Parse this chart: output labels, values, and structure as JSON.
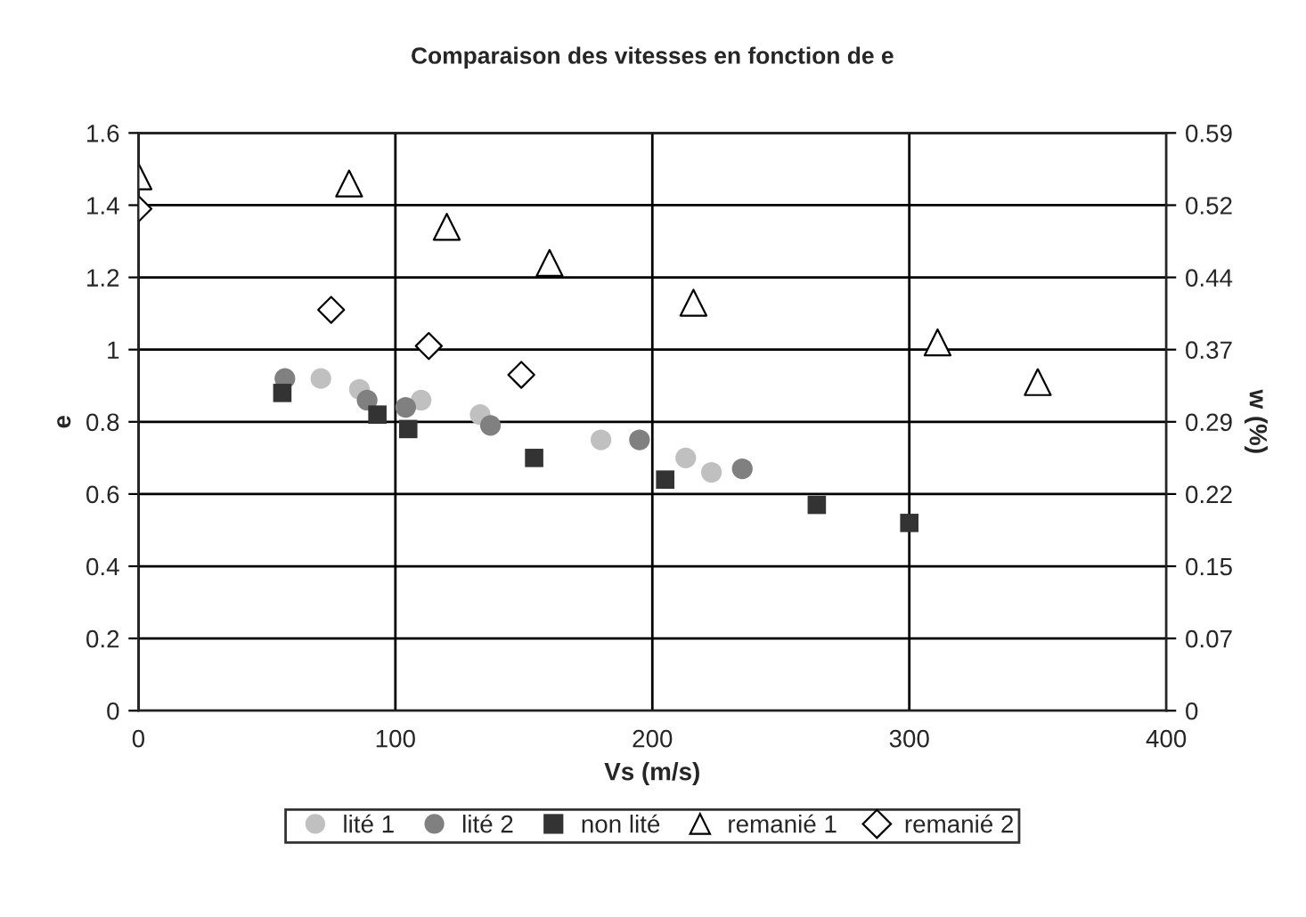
{
  "chart_data": {
    "type": "scatter",
    "title": "Comparaison des vitesses en fonction de e",
    "xlabel": "Vs (m/s)",
    "ylabel": "e",
    "y2label": "w (%)",
    "xlim": [
      0,
      400
    ],
    "xticks": [
      0,
      100,
      200,
      300,
      400
    ],
    "ylim": [
      0,
      1.6
    ],
    "yticks": [
      0,
      0.2,
      0.4,
      0.6,
      0.8,
      1,
      1.2,
      1.4,
      1.6
    ],
    "y2lim": [
      0,
      0.59
    ],
    "y2ticks": [
      0,
      {
        "value": 0.07375,
        "label": "0.07"
      },
      {
        "value": 0.1475,
        "label": "0.15"
      },
      {
        "value": 0.22125,
        "label": "0.22"
      },
      {
        "value": 0.295,
        "label": "0.29"
      },
      {
        "value": 0.36875,
        "label": "0.37"
      },
      {
        "value": 0.4425,
        "label": "0.44"
      },
      {
        "value": 0.51625,
        "label": "0.52"
      },
      0.59
    ],
    "grid": true,
    "legend": "bottom",
    "series": [
      {
        "name": "lité 1",
        "color": "#c0c0c0",
        "marker": "circle",
        "x": [
          71,
          86,
          110,
          133,
          180,
          213,
          223
        ],
        "values": [
          0.92,
          0.89,
          0.86,
          0.82,
          0.75,
          0.7,
          0.66
        ]
      },
      {
        "name": "lité 2",
        "color": "#808080",
        "marker": "circle",
        "x": [
          57,
          89,
          104,
          137,
          195,
          235
        ],
        "values": [
          0.92,
          0.86,
          0.84,
          0.79,
          0.75,
          0.67
        ]
      },
      {
        "name": "non lité",
        "color": "#333333",
        "marker": "square",
        "x": [
          56,
          93,
          105,
          154,
          205,
          264,
          300
        ],
        "values": [
          0.88,
          0.82,
          0.78,
          0.7,
          0.64,
          0.57,
          0.52
        ]
      },
      {
        "name": "remanié 1",
        "color": "#ffffff",
        "marker": "triangle",
        "x": [
          0,
          82,
          120,
          160,
          216,
          311,
          350
        ],
        "values": [
          1.48,
          1.46,
          1.34,
          1.24,
          1.13,
          1.02,
          0.91
        ]
      },
      {
        "name": "remanié 2",
        "color": "#ffffff",
        "marker": "diamond",
        "x": [
          0,
          75,
          113,
          149
        ],
        "values": [
          1.39,
          1.11,
          1.01,
          0.93
        ]
      }
    ]
  }
}
